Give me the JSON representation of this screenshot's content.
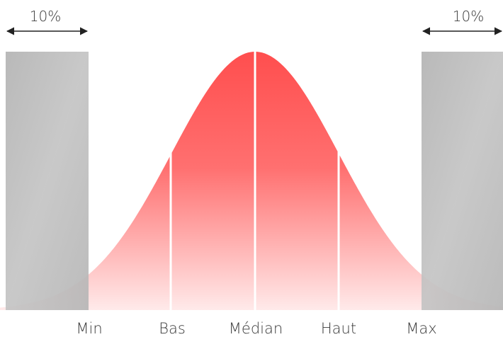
{
  "diagram": {
    "left_zone_label": "10%",
    "right_zone_label": "10%",
    "markers": {
      "min": "Min",
      "low": "Bas",
      "median": "Médian",
      "high": "Haut",
      "max": "Max"
    }
  },
  "colors": {
    "curve_top": "#ff4f4f",
    "curve_bottom": "#ffe9e9",
    "band": "#b9b9b9",
    "arrow": "#222222",
    "text": "#3a3a3a"
  }
}
